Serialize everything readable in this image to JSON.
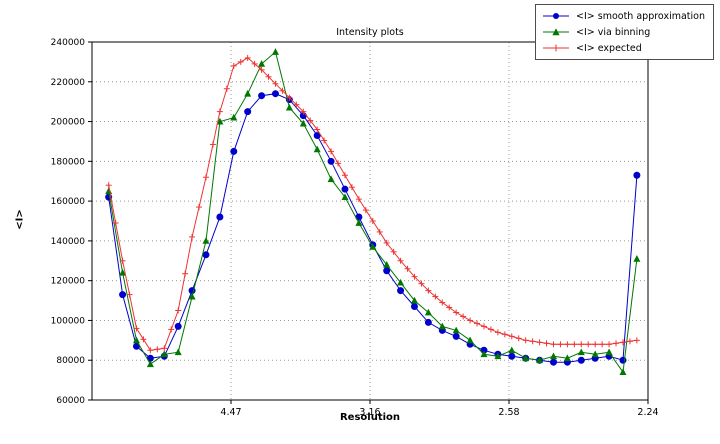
{
  "chart_data": {
    "type": "line",
    "title": "Intensity plots",
    "xlabel": "Resolution",
    "ylabel": "<I>",
    "grid": true,
    "legend_position": "upper right outside axes",
    "x_axis": {
      "scale": "linear in 1/d^2 (resolution labels in angstroms)",
      "range": [
        0.0,
        0.2
      ],
      "tick_positions": [
        0.05,
        0.1,
        0.15,
        0.2
      ],
      "tick_labels": [
        "4.47",
        "3.16",
        "2.58",
        "2.24"
      ]
    },
    "y_axis": {
      "range": [
        60000,
        240000
      ],
      "ticks": [
        60000,
        80000,
        100000,
        120000,
        140000,
        160000,
        180000,
        200000,
        220000,
        240000
      ]
    },
    "x": [
      0.006,
      0.011,
      0.016,
      0.021,
      0.026,
      0.031,
      0.036,
      0.041,
      0.046,
      0.051,
      0.056,
      0.061,
      0.066,
      0.071,
      0.076,
      0.081,
      0.086,
      0.091,
      0.096,
      0.101,
      0.106,
      0.111,
      0.116,
      0.121,
      0.126,
      0.131,
      0.136,
      0.141,
      0.146,
      0.151,
      0.156,
      0.161,
      0.166,
      0.171,
      0.176,
      0.181,
      0.186,
      0.191,
      0.196
    ],
    "series": [
      {
        "name": "<I> smooth approximation",
        "color": "#0000cc",
        "marker": "circle",
        "values": [
          162000,
          113000,
          87000,
          81000,
          82000,
          97000,
          115000,
          133000,
          152000,
          185000,
          205000,
          213000,
          214000,
          211000,
          203000,
          193000,
          180000,
          166000,
          152000,
          138000,
          125000,
          115000,
          107000,
          99000,
          95000,
          92000,
          88000,
          85000,
          83000,
          82000,
          81000,
          80000,
          79000,
          79000,
          80000,
          81000,
          82000,
          80000,
          173000
        ]
      },
      {
        "name": "<I> via binning",
        "color": "#007700",
        "marker": "triangle",
        "values": [
          165000,
          124000,
          90000,
          78000,
          83000,
          84000,
          112000,
          140000,
          200000,
          202000,
          214000,
          229000,
          235000,
          207000,
          199000,
          186000,
          171000,
          162000,
          149000,
          137000,
          128000,
          119000,
          110000,
          104000,
          97000,
          95000,
          90000,
          83000,
          82000,
          85000,
          81000,
          80000,
          82000,
          81000,
          84000,
          83000,
          84000,
          74000,
          131000
        ]
      },
      {
        "name": "<I> expected",
        "color": "#ee3333",
        "marker": "plus",
        "values": [
          168000,
          130000,
          96000,
          85000,
          86000,
          105000,
          142000,
          172000,
          205000,
          228000,
          232000,
          226000,
          219000,
          212000,
          205000,
          196000,
          185000,
          173000,
          161000,
          150000,
          139000,
          130000,
          122000,
          115000,
          109000,
          104000,
          100000,
          97000,
          94000,
          92000,
          90000,
          89000,
          88000,
          88000,
          88000,
          88000,
          88000,
          89000,
          90000
        ]
      }
    ],
    "colors": {
      "grid": "#999999",
      "frame": "#000000",
      "background": "#ffffff"
    }
  }
}
